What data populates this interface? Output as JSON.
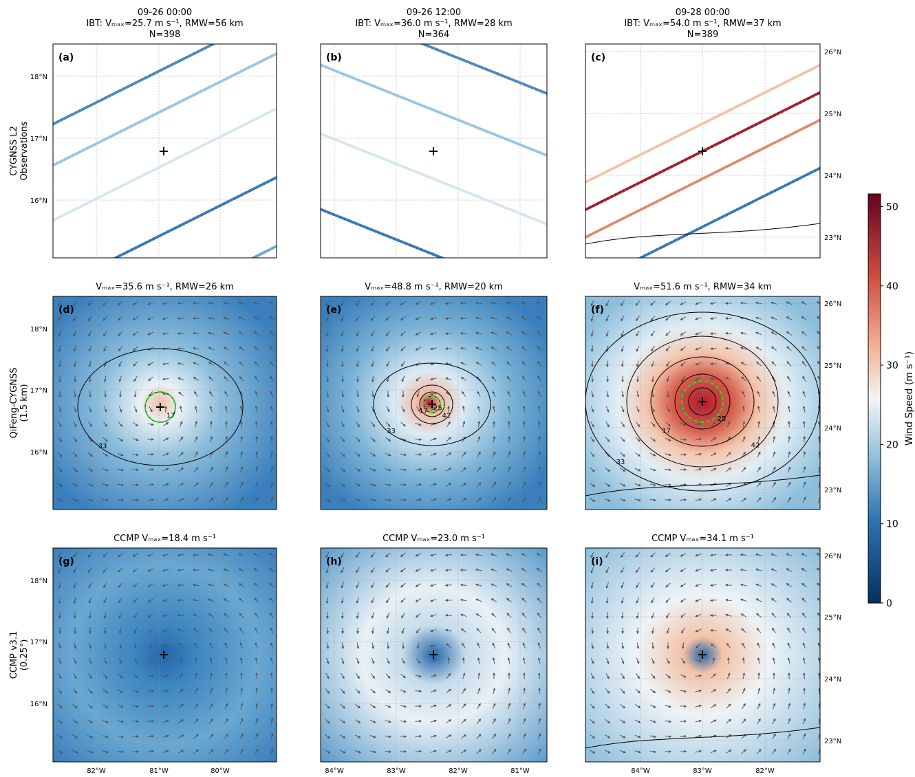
{
  "columns": [
    {
      "time": "09-26 00:00",
      "ibt": "IBT: Vₘₐₓ=25.7 m s⁻¹, RMW=56 km",
      "n": "N=398"
    },
    {
      "time": "09-26 12:00",
      "ibt": "IBT: Vₘₐₓ=36.0 m s⁻¹, RMW=28 km",
      "n": "N=364"
    },
    {
      "time": "09-28 00:00",
      "ibt": "IBT: Vₘₐₓ=54.0 m s⁻¹, RMW=37 km",
      "n": "N=389"
    }
  ],
  "row_labels": [
    [
      "CYGNSS L2",
      "Observations"
    ],
    [
      "QiFeng-CYGNSS",
      "(1.5 km)"
    ],
    [
      "CCMP v3.1",
      "(0.25°)"
    ]
  ],
  "row_subtitles": [
    null,
    [
      "Vₘₐₓ=35.6 m s⁻¹, RMW=26 km",
      "Vₘₐₓ=48.8 m s⁻¹, RMW=20 km",
      "Vₘₐₓ=51.6 m s⁻¹, RMW=34 km"
    ],
    [
      "CCMP Vₘₐₓ=18.4 m s⁻¹",
      "CCMP Vₘₐₓ=23.0 m s⁻¹",
      "CCMP Vₘₐₓ=34.1 m s⁻¹"
    ]
  ],
  "panel_labels": [
    "(a)",
    "(b)",
    "(c)",
    "(d)",
    "(e)",
    "(f)",
    "(g)",
    "(h)",
    "(i)"
  ],
  "contour_labels": {
    "d": [
      "33",
      "17"
    ],
    "e": [
      "33",
      "42",
      "17",
      "25"
    ],
    "f": [
      "33",
      "42",
      "17",
      "25"
    ]
  },
  "lat_ticks_left": [
    "18°N",
    "17°N",
    "16°N"
  ],
  "lat_ticks_right": [
    "26°N",
    "25°N",
    "24°N",
    "23°N"
  ],
  "lon_ticks": [
    [
      "82°W",
      "81°W",
      "80°W"
    ],
    [
      "84°W",
      "83°W",
      "82°W",
      "81°W"
    ],
    [
      "84°W",
      "83°W",
      "82°W"
    ]
  ],
  "colorbar": {
    "label": "Wind Speed (m s⁻¹)",
    "range": [
      0,
      51.6
    ],
    "ticks": [
      0,
      10,
      20,
      30,
      40,
      50
    ]
  }
}
